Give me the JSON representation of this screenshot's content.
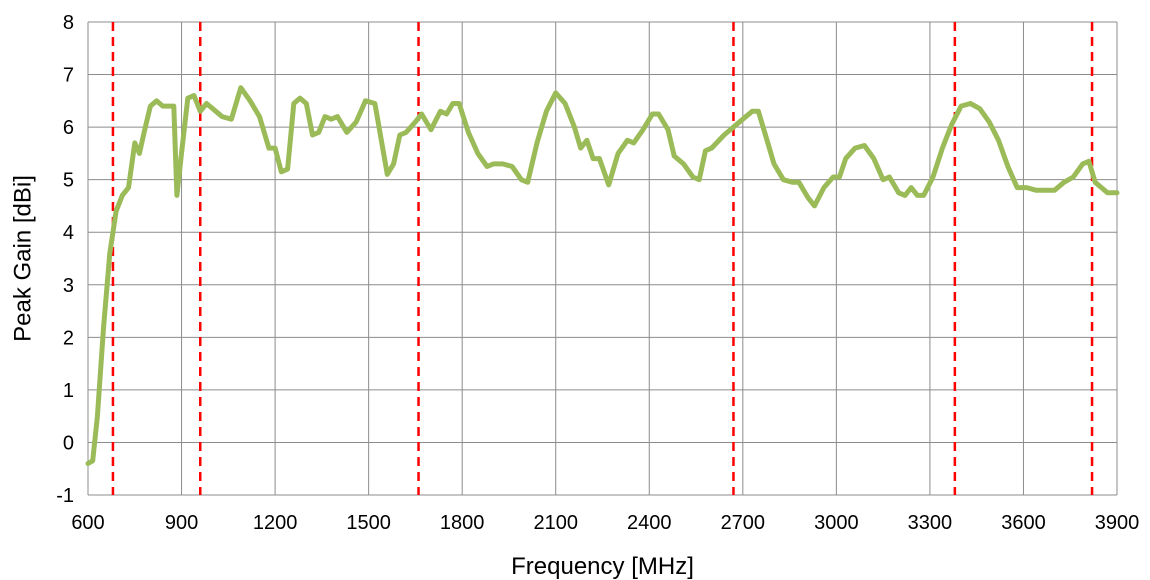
{
  "chart_data": {
    "type": "line",
    "xlabel": "Frequency [MHz]",
    "ylabel": "Peak Gain [dBi]",
    "xlim": [
      600,
      3900
    ],
    "ylim": [
      -1,
      8
    ],
    "x_ticks": [
      600,
      900,
      1200,
      1500,
      1800,
      2100,
      2400,
      2700,
      3000,
      3300,
      3600,
      3900
    ],
    "y_ticks": [
      -1,
      0,
      1,
      2,
      3,
      4,
      5,
      6,
      7,
      8
    ],
    "grid": true,
    "legend": "none",
    "series": [
      {
        "color": "#9bbb59",
        "points": [
          [
            600,
            -0.4
          ],
          [
            615,
            -0.35
          ],
          [
            630,
            0.5
          ],
          [
            650,
            2.2
          ],
          [
            670,
            3.6
          ],
          [
            690,
            4.4
          ],
          [
            710,
            4.7
          ],
          [
            730,
            4.85
          ],
          [
            750,
            5.7
          ],
          [
            765,
            5.5
          ],
          [
            780,
            5.9
          ],
          [
            800,
            6.4
          ],
          [
            820,
            6.5
          ],
          [
            840,
            6.4
          ],
          [
            860,
            6.4
          ],
          [
            875,
            6.4
          ],
          [
            885,
            4.7
          ],
          [
            900,
            5.5
          ],
          [
            920,
            6.55
          ],
          [
            940,
            6.6
          ],
          [
            960,
            6.3
          ],
          [
            980,
            6.45
          ],
          [
            1000,
            6.35
          ],
          [
            1030,
            6.2
          ],
          [
            1060,
            6.15
          ],
          [
            1090,
            6.75
          ],
          [
            1120,
            6.5
          ],
          [
            1150,
            6.2
          ],
          [
            1180,
            5.6
          ],
          [
            1200,
            5.6
          ],
          [
            1220,
            5.15
          ],
          [
            1240,
            5.2
          ],
          [
            1260,
            6.45
          ],
          [
            1280,
            6.55
          ],
          [
            1300,
            6.45
          ],
          [
            1320,
            5.85
          ],
          [
            1340,
            5.9
          ],
          [
            1360,
            6.2
          ],
          [
            1380,
            6.15
          ],
          [
            1400,
            6.2
          ],
          [
            1430,
            5.9
          ],
          [
            1460,
            6.1
          ],
          [
            1490,
            6.5
          ],
          [
            1520,
            6.45
          ],
          [
            1560,
            5.1
          ],
          [
            1580,
            5.3
          ],
          [
            1600,
            5.85
          ],
          [
            1620,
            5.9
          ],
          [
            1650,
            6.1
          ],
          [
            1670,
            6.25
          ],
          [
            1700,
            5.95
          ],
          [
            1730,
            6.3
          ],
          [
            1750,
            6.25
          ],
          [
            1770,
            6.45
          ],
          [
            1790,
            6.45
          ],
          [
            1820,
            5.9
          ],
          [
            1850,
            5.5
          ],
          [
            1880,
            5.25
          ],
          [
            1900,
            5.3
          ],
          [
            1930,
            5.3
          ],
          [
            1960,
            5.25
          ],
          [
            1990,
            5.0
          ],
          [
            2010,
            4.95
          ],
          [
            2040,
            5.7
          ],
          [
            2070,
            6.3
          ],
          [
            2100,
            6.65
          ],
          [
            2130,
            6.45
          ],
          [
            2160,
            6.0
          ],
          [
            2180,
            5.6
          ],
          [
            2200,
            5.75
          ],
          [
            2220,
            5.4
          ],
          [
            2240,
            5.4
          ],
          [
            2270,
            4.9
          ],
          [
            2300,
            5.5
          ],
          [
            2330,
            5.75
          ],
          [
            2350,
            5.7
          ],
          [
            2380,
            5.95
          ],
          [
            2410,
            6.25
          ],
          [
            2430,
            6.25
          ],
          [
            2460,
            5.95
          ],
          [
            2480,
            5.45
          ],
          [
            2510,
            5.3
          ],
          [
            2540,
            5.05
          ],
          [
            2560,
            5.0
          ],
          [
            2580,
            5.55
          ],
          [
            2600,
            5.6
          ],
          [
            2640,
            5.85
          ],
          [
            2670,
            6.0
          ],
          [
            2700,
            6.15
          ],
          [
            2730,
            6.3
          ],
          [
            2750,
            6.3
          ],
          [
            2780,
            5.7
          ],
          [
            2800,
            5.3
          ],
          [
            2830,
            5.0
          ],
          [
            2860,
            4.95
          ],
          [
            2880,
            4.95
          ],
          [
            2910,
            4.65
          ],
          [
            2930,
            4.5
          ],
          [
            2960,
            4.85
          ],
          [
            2990,
            5.05
          ],
          [
            3010,
            5.05
          ],
          [
            3030,
            5.4
          ],
          [
            3060,
            5.6
          ],
          [
            3090,
            5.65
          ],
          [
            3120,
            5.4
          ],
          [
            3150,
            5.0
          ],
          [
            3170,
            5.05
          ],
          [
            3200,
            4.75
          ],
          [
            3220,
            4.7
          ],
          [
            3240,
            4.85
          ],
          [
            3260,
            4.7
          ],
          [
            3280,
            4.7
          ],
          [
            3310,
            5.05
          ],
          [
            3340,
            5.6
          ],
          [
            3370,
            6.05
          ],
          [
            3400,
            6.4
          ],
          [
            3430,
            6.45
          ],
          [
            3460,
            6.35
          ],
          [
            3490,
            6.1
          ],
          [
            3520,
            5.75
          ],
          [
            3550,
            5.25
          ],
          [
            3580,
            4.85
          ],
          [
            3610,
            4.85
          ],
          [
            3640,
            4.8
          ],
          [
            3670,
            4.8
          ],
          [
            3700,
            4.8
          ],
          [
            3730,
            4.95
          ],
          [
            3760,
            5.05
          ],
          [
            3790,
            5.3
          ],
          [
            3810,
            5.35
          ],
          [
            3830,
            4.95
          ],
          [
            3850,
            4.85
          ],
          [
            3870,
            4.75
          ],
          [
            3900,
            4.75
          ]
        ]
      }
    ],
    "vertical_markers": {
      "color": "#ff0000",
      "style": "dashed",
      "x": [
        680,
        960,
        1660,
        2670,
        3380,
        3820
      ]
    }
  }
}
